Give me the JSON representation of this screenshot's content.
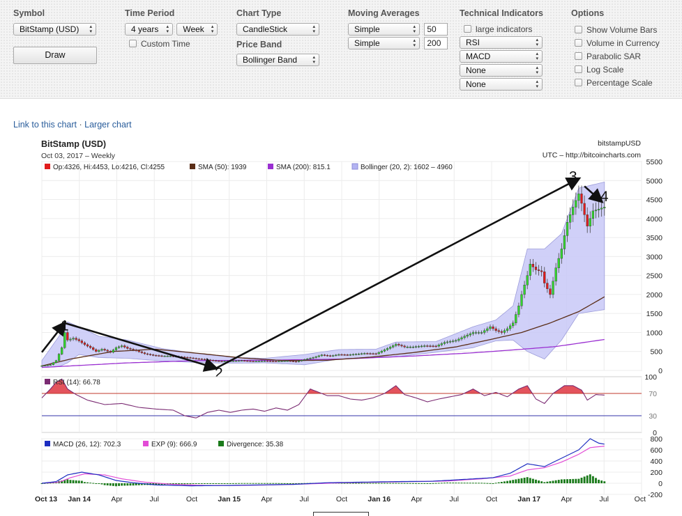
{
  "controls": {
    "symbol": {
      "label": "Symbol",
      "value": "BitStamp (USD)"
    },
    "draw_label": "Draw",
    "time_period": {
      "label": "Time Period",
      "range": "4 years",
      "interval": "Week",
      "custom_time": "Custom Time"
    },
    "chart_type": {
      "label": "Chart Type",
      "value": "CandleStick"
    },
    "price_band": {
      "label": "Price Band",
      "value": "Bollinger Band"
    },
    "moving_averages": {
      "label": "Moving Averages",
      "ma1": {
        "type": "Simple",
        "period": "50"
      },
      "ma2": {
        "type": "Simple",
        "period": "200"
      }
    },
    "technical_indicators": {
      "label": "Technical Indicators",
      "large": "large indicators",
      "items": [
        "RSI",
        "MACD",
        "None",
        "None"
      ]
    },
    "options": {
      "label": "Options",
      "items": [
        "Show Volume Bars",
        "Volume in Currency",
        "Parabolic SAR",
        "Log Scale",
        "Percentage Scale"
      ]
    }
  },
  "links": {
    "link_to_chart": "Link to this chart",
    "separator": "·",
    "larger_chart": "Larger chart"
  },
  "chart_data": {
    "type": "candlestick",
    "title": "BitStamp (USD)",
    "subtitle": "Oct 03, 2017 – Weekly",
    "source_symbol": "bitstampUSD",
    "source_credit": "UTC – http://bitcoincharts.com",
    "colors": {
      "up": "#33d62e",
      "down": "#e01b1b",
      "sma50": "#5a2d17",
      "sma200": "#9a2fd1",
      "bollinger_fill": "#c8c8f7",
      "bollinger_edge": "#9c9cda",
      "rsi": "#7a2a72",
      "macd": "#1c2dc0",
      "exp": "#e24cd6",
      "divergence": "#1a7a1a",
      "arrow": "#111111"
    },
    "legend": {
      "ohlc": "Op:4326, Hi:4453, Lo:4216, Cl:4255",
      "sma50": "SMA (50): 1939",
      "sma200": "SMA (200): 815.1",
      "bollinger": "Bollinger (20, 2): 1602 – 4960"
    },
    "x_ticks": [
      "Oct 13",
      "Jan 14",
      "Apr",
      "Jul",
      "Oct",
      "Jan 15",
      "Apr",
      "Jul",
      "Oct",
      "Jan 16",
      "Apr",
      "Jul",
      "Oct",
      "Jan 17",
      "Apr",
      "Jul",
      "Oct"
    ],
    "x_range_weeks": [
      0,
      210
    ],
    "price_axis": {
      "ylim": [
        0,
        5500
      ],
      "ticks": [
        0,
        500,
        1000,
        1500,
        2000,
        2500,
        3000,
        3500,
        4000,
        4500,
        5000,
        5500
      ]
    },
    "price_close_anchors": [
      [
        0,
        125
      ],
      [
        3,
        150
      ],
      [
        5,
        260
      ],
      [
        7,
        600
      ],
      [
        8,
        1000
      ],
      [
        9,
        800
      ],
      [
        11,
        850
      ],
      [
        13,
        780
      ],
      [
        15,
        680
      ],
      [
        17,
        600
      ],
      [
        19,
        500
      ],
      [
        21,
        560
      ],
      [
        24,
        480
      ],
      [
        26,
        600
      ],
      [
        28,
        650
      ],
      [
        30,
        580
      ],
      [
        33,
        520
      ],
      [
        36,
        440
      ],
      [
        39,
        400
      ],
      [
        42,
        380
      ],
      [
        45,
        380
      ],
      [
        48,
        360
      ],
      [
        51,
        340
      ],
      [
        54,
        310
      ],
      [
        57,
        290
      ],
      [
        60,
        260
      ],
      [
        63,
        240
      ],
      [
        66,
        250
      ],
      [
        70,
        260
      ],
      [
        74,
        240
      ],
      [
        78,
        250
      ],
      [
        82,
        240
      ],
      [
        86,
        255
      ],
      [
        89,
        230
      ],
      [
        92,
        290
      ],
      [
        95,
        340
      ],
      [
        98,
        410
      ],
      [
        101,
        380
      ],
      [
        104,
        420
      ],
      [
        107,
        410
      ],
      [
        110,
        430
      ],
      [
        113,
        450
      ],
      [
        117,
        440
      ],
      [
        121,
        580
      ],
      [
        124,
        690
      ],
      [
        127,
        620
      ],
      [
        130,
        620
      ],
      [
        134,
        650
      ],
      [
        138,
        640
      ],
      [
        141,
        740
      ],
      [
        145,
        790
      ],
      [
        148,
        900
      ],
      [
        151,
        1000
      ],
      [
        154,
        1000
      ],
      [
        157,
        1150
      ],
      [
        159,
        1050
      ],
      [
        161,
        1000
      ],
      [
        163,
        1100
      ],
      [
        165,
        1250
      ],
      [
        167,
        1700
      ],
      [
        168,
        2000
      ],
      [
        170,
        2500
      ],
      [
        171,
        2800
      ],
      [
        173,
        2650
      ],
      [
        175,
        2600
      ],
      [
        176,
        2300
      ],
      [
        178,
        2000
      ],
      [
        180,
        2700
      ],
      [
        182,
        3200
      ],
      [
        184,
        3900
      ],
      [
        186,
        4300
      ],
      [
        188,
        4650
      ],
      [
        189,
        4400
      ],
      [
        191,
        3800
      ],
      [
        193,
        4200
      ],
      [
        195,
        4250
      ],
      [
        197,
        4300
      ]
    ],
    "bollinger_band_anchors": [
      [
        0,
        80,
        260
      ],
      [
        6,
        100,
        900
      ],
      [
        9,
        200,
        1280
      ],
      [
        13,
        420,
        1150
      ],
      [
        20,
        340,
        900
      ],
      [
        30,
        320,
        800
      ],
      [
        42,
        250,
        580
      ],
      [
        54,
        210,
        450
      ],
      [
        66,
        190,
        350
      ],
      [
        78,
        200,
        320
      ],
      [
        92,
        150,
        420
      ],
      [
        104,
        300,
        550
      ],
      [
        117,
        360,
        560
      ],
      [
        124,
        360,
        750
      ],
      [
        138,
        480,
        760
      ],
      [
        151,
        600,
        1150
      ],
      [
        159,
        780,
        1330
      ],
      [
        165,
        800,
        1700
      ],
      [
        170,
        500,
        3200
      ],
      [
        176,
        300,
        3200
      ],
      [
        182,
        800,
        3600
      ],
      [
        188,
        1500,
        4800
      ],
      [
        197,
        1602,
        4960
      ]
    ],
    "sma50_anchors": [
      [
        0,
        120
      ],
      [
        10,
        300
      ],
      [
        25,
        500
      ],
      [
        40,
        560
      ],
      [
        55,
        450
      ],
      [
        70,
        330
      ],
      [
        85,
        260
      ],
      [
        100,
        270
      ],
      [
        115,
        350
      ],
      [
        130,
        470
      ],
      [
        145,
        620
      ],
      [
        158,
        830
      ],
      [
        168,
        1000
      ],
      [
        178,
        1250
      ],
      [
        188,
        1550
      ],
      [
        197,
        1939
      ]
    ],
    "sma200_anchors": [
      [
        0,
        80
      ],
      [
        30,
        200
      ],
      [
        55,
        260
      ],
      [
        80,
        270
      ],
      [
        105,
        300
      ],
      [
        130,
        380
      ],
      [
        150,
        460
      ],
      [
        165,
        540
      ],
      [
        180,
        630
      ],
      [
        197,
        815
      ]
    ],
    "rsi_axis": {
      "ylim": [
        0,
        100
      ],
      "ticks": [
        0,
        30,
        70,
        100
      ],
      "levels": [
        30,
        70
      ]
    },
    "rsi_legend": "RSI (14): 66.78",
    "rsi_anchors": [
      [
        0,
        62
      ],
      [
        3,
        78
      ],
      [
        5,
        90
      ],
      [
        7,
        96
      ],
      [
        9,
        78
      ],
      [
        12,
        68
      ],
      [
        16,
        58
      ],
      [
        22,
        50
      ],
      [
        28,
        52
      ],
      [
        34,
        45
      ],
      [
        40,
        42
      ],
      [
        46,
        40
      ],
      [
        50,
        30
      ],
      [
        54,
        26
      ],
      [
        58,
        36
      ],
      [
        62,
        40
      ],
      [
        66,
        36
      ],
      [
        70,
        40
      ],
      [
        74,
        42
      ],
      [
        78,
        38
      ],
      [
        82,
        44
      ],
      [
        86,
        40
      ],
      [
        90,
        50
      ],
      [
        94,
        78
      ],
      [
        97,
        72
      ],
      [
        100,
        66
      ],
      [
        104,
        66
      ],
      [
        108,
        60
      ],
      [
        112,
        58
      ],
      [
        116,
        62
      ],
      [
        120,
        70
      ],
      [
        124,
        84
      ],
      [
        127,
        68
      ],
      [
        131,
        62
      ],
      [
        135,
        55
      ],
      [
        139,
        60
      ],
      [
        143,
        64
      ],
      [
        147,
        68
      ],
      [
        151,
        78
      ],
      [
        155,
        66
      ],
      [
        159,
        72
      ],
      [
        163,
        64
      ],
      [
        167,
        78
      ],
      [
        170,
        84
      ],
      [
        173,
        60
      ],
      [
        176,
        52
      ],
      [
        179,
        70
      ],
      [
        183,
        84
      ],
      [
        186,
        84
      ],
      [
        189,
        76
      ],
      [
        191,
        58
      ],
      [
        194,
        68
      ],
      [
        197,
        67
      ]
    ],
    "macd_axis": {
      "ylim": [
        -200,
        800
      ],
      "ticks": [
        -200,
        0,
        200,
        400,
        600,
        800
      ]
    },
    "macd_legend": {
      "macd": "MACD (26, 12): 702.3",
      "exp": "EXP (9): 666.9",
      "divergence": "Divergence: 35.38"
    },
    "macd_anchors": [
      [
        0,
        0
      ],
      [
        5,
        30
      ],
      [
        9,
        150
      ],
      [
        14,
        200
      ],
      [
        20,
        150
      ],
      [
        26,
        50
      ],
      [
        32,
        10
      ],
      [
        40,
        -30
      ],
      [
        52,
        -45
      ],
      [
        64,
        -40
      ],
      [
        76,
        -30
      ],
      [
        88,
        -20
      ],
      [
        100,
        10
      ],
      [
        112,
        20
      ],
      [
        124,
        30
      ],
      [
        136,
        35
      ],
      [
        148,
        70
      ],
      [
        158,
        100
      ],
      [
        164,
        180
      ],
      [
        170,
        350
      ],
      [
        176,
        300
      ],
      [
        182,
        450
      ],
      [
        188,
        600
      ],
      [
        192,
        800
      ],
      [
        195,
        720
      ],
      [
        197,
        702
      ]
    ],
    "exp_anchors": [
      [
        0,
        0
      ],
      [
        6,
        20
      ],
      [
        10,
        100
      ],
      [
        15,
        170
      ],
      [
        22,
        150
      ],
      [
        28,
        80
      ],
      [
        36,
        20
      ],
      [
        46,
        -20
      ],
      [
        58,
        -40
      ],
      [
        70,
        -38
      ],
      [
        82,
        -28
      ],
      [
        94,
        -10
      ],
      [
        106,
        10
      ],
      [
        118,
        20
      ],
      [
        130,
        30
      ],
      [
        142,
        40
      ],
      [
        154,
        80
      ],
      [
        164,
        130
      ],
      [
        170,
        240
      ],
      [
        176,
        280
      ],
      [
        182,
        380
      ],
      [
        188,
        520
      ],
      [
        192,
        640
      ],
      [
        197,
        667
      ]
    ],
    "annotations": [
      {
        "label": "1",
        "week": 8,
        "price": 1200
      },
      {
        "label": "2",
        "week": 62,
        "price": -50
      },
      {
        "label": "3",
        "week": 186,
        "price": 5120
      },
      {
        "label": "4",
        "week": 197,
        "price": 4600
      }
    ],
    "arrows": [
      {
        "from": [
          0,
          480
        ],
        "to": [
          8,
          1250
        ]
      },
      {
        "from": [
          8,
          1250
        ],
        "to": [
          61,
          60
        ]
      },
      {
        "from": [
          61,
          60
        ],
        "to": [
          188,
          5050
        ]
      },
      {
        "from": [
          190,
          4850
        ],
        "to": [
          196,
          4450
        ]
      }
    ]
  }
}
